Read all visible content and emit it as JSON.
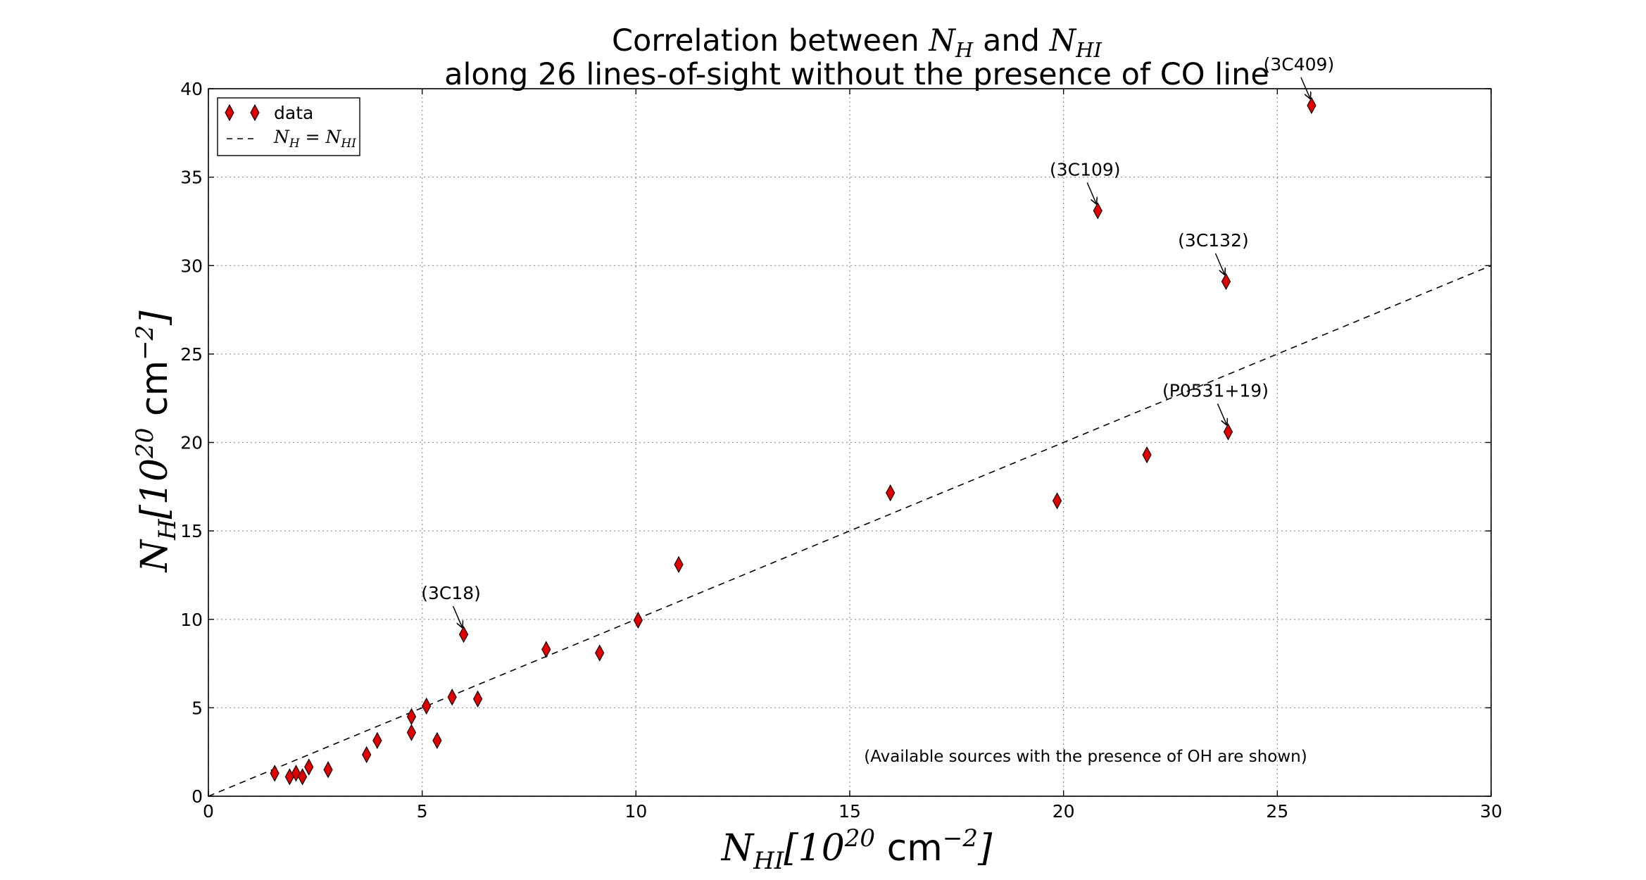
{
  "chart_data": {
    "type": "scatter",
    "title_line1": {
      "pre": "Correlation between ",
      "sym_a": "N",
      "sub_a": "H",
      "mid": " and ",
      "sym_b": "N",
      "sub_b": "HI"
    },
    "title_line2": "along 26 lines-of-sight without the presence of CO line",
    "xlabel": {
      "sym": "N",
      "sub": "HI",
      "pre": "[10",
      "exp": "20",
      "unit": " cm",
      "unit_exp": "−2",
      "post": "]"
    },
    "ylabel": {
      "sym": "N",
      "sub": "H",
      "pre": "[10",
      "exp": "20",
      "unit": " cm",
      "unit_exp": "−2",
      "post": "]"
    },
    "xlim": [
      0,
      30
    ],
    "ylim": [
      0,
      40
    ],
    "xticks": [
      0,
      5,
      10,
      15,
      20,
      25,
      30
    ],
    "yticks": [
      0,
      5,
      10,
      15,
      20,
      25,
      30,
      35,
      40
    ],
    "grid": true,
    "legend_position": "top-left",
    "legend": {
      "data_label": "data",
      "line_sym_a": "N",
      "line_sub_a": "H",
      "line_eq": " = ",
      "line_sym_b": "N",
      "line_sub_b": "HI"
    },
    "marker_color": "#e00000",
    "series": [
      {
        "name": "data",
        "points": [
          {
            "x": 1.55,
            "y": 1.3
          },
          {
            "x": 1.9,
            "y": 1.1
          },
          {
            "x": 2.05,
            "y": 1.3
          },
          {
            "x": 2.2,
            "y": 1.1
          },
          {
            "x": 2.35,
            "y": 1.65
          },
          {
            "x": 2.8,
            "y": 1.5
          },
          {
            "x": 3.7,
            "y": 2.35
          },
          {
            "x": 3.95,
            "y": 3.15
          },
          {
            "x": 4.75,
            "y": 4.5
          },
          {
            "x": 4.75,
            "y": 3.6
          },
          {
            "x": 5.1,
            "y": 5.1
          },
          {
            "x": 5.35,
            "y": 3.15
          },
          {
            "x": 5.7,
            "y": 5.6
          },
          {
            "x": 5.97,
            "y": 9.15
          },
          {
            "x": 6.3,
            "y": 5.5
          },
          {
            "x": 7.9,
            "y": 8.3
          },
          {
            "x": 9.15,
            "y": 8.1
          },
          {
            "x": 10.05,
            "y": 9.95
          },
          {
            "x": 11.0,
            "y": 13.1
          },
          {
            "x": 15.95,
            "y": 17.15
          },
          {
            "x": 19.85,
            "y": 16.7
          },
          {
            "x": 20.8,
            "y": 33.1
          },
          {
            "x": 21.95,
            "y": 19.3
          },
          {
            "x": 23.8,
            "y": 29.1
          },
          {
            "x": 23.85,
            "y": 20.6
          },
          {
            "x": 25.8,
            "y": 39.05
          }
        ]
      }
    ],
    "reference_line": {
      "name": "N_H = N_HI",
      "from": [
        0,
        0
      ],
      "to": [
        30,
        30
      ],
      "style": "dashed"
    },
    "annotations": [
      {
        "text": "(3C18)",
        "x": 5.97,
        "y": 9.15
      },
      {
        "text": "(3C109)",
        "x": 20.8,
        "y": 33.1
      },
      {
        "text": "(3C132)",
        "x": 23.8,
        "y": 29.1
      },
      {
        "text": "(P0531+19)",
        "x": 23.85,
        "y": 20.6
      },
      {
        "text": "(3C409)",
        "x": 25.8,
        "y": 39.05
      }
    ],
    "note": "(Available sources with the presence of OH are shown)"
  }
}
